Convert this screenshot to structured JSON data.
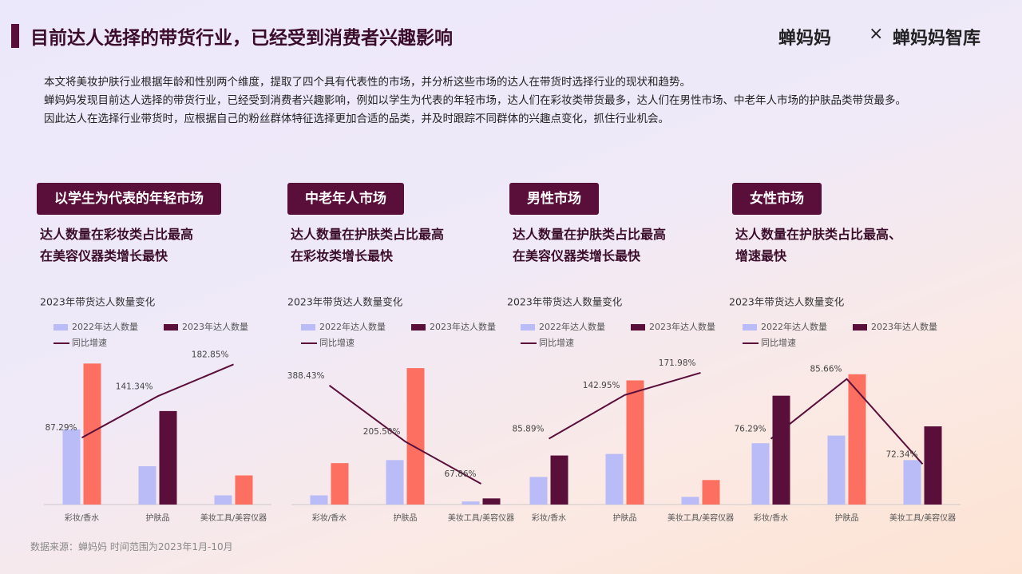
{
  "header": {
    "title": "目前达人选择的带货行业，已经受到消费者兴趣影响",
    "logo_left": "蝉妈妈",
    "logo_sep": "×",
    "logo_right": "蝉妈妈智库"
  },
  "intro": [
    "本文将美妆护肤行业根据年龄和性别两个维度，提取了四个具有代表性的市场，并分析这些市场的达人在带货时选择行业的现状和趋势。",
    "蝉妈妈发现目前达人选择的带货行业，已经受到消费者兴趣影响，例如以学生为代表的年轻市场，达人们在彩妆类带货最多，达人们在男性市场、中老年人市场的护肤品类带货最多。",
    "因此达人在选择行业带货时，应根据自己的粉丝群体特征选择更加合适的品类，并及时跟踪不同群体的兴趣点变化，抓住行业机会。"
  ],
  "panels": [
    {
      "heading": "以学生为代表的年轻市场",
      "points": [
        "达人数量在彩妆类占比最高",
        "在美容仪器类增长最快"
      ]
    },
    {
      "heading": "中老年人市场",
      "points": [
        "达人数量在护肤类占比最高",
        "在彩妆类增长最快"
      ]
    },
    {
      "heading": "男性市场",
      "points": [
        "达人数量在护肤类占比最高",
        "在美容仪器类增长最快"
      ]
    },
    {
      "heading": "女性市场",
      "points": [
        "达人数量在护肤类占比最高、",
        "增速最快"
      ]
    }
  ],
  "chart_data": [
    {
      "type": "bar",
      "title": "2023年带货达人数量变化",
      "categories": [
        "彩妆/香水",
        "护肤品",
        "美妆工具/美容仪器"
      ],
      "ylim": [
        0,
        100
      ],
      "y2lim": [
        0,
        200
      ],
      "series": [
        {
          "name": "2022年达人数量",
          "color": "#b9bcf6",
          "values": [
            49,
            25,
            6
          ]
        },
        {
          "name": "2023年达人数量",
          "color": "#5a0f3b",
          "point_colors": [
            "#fd6f61",
            "#5a0f3b",
            "#fd6f61"
          ],
          "values": [
            92,
            61,
            19
          ]
        },
        {
          "name": "同比增速",
          "type": "line",
          "axis": "y2",
          "color": "#5a0f3b",
          "values": [
            87.29,
            141.34,
            182.85
          ],
          "value_labels": [
            "87.29%",
            "141.34%",
            "182.85%"
          ]
        }
      ]
    },
    {
      "type": "bar",
      "title": "2023年带货达人数量变化",
      "categories": [
        "彩妆/香水",
        "护肤品",
        "美妆工具/美容仪器"
      ],
      "ylim": [
        0,
        100
      ],
      "y2lim": [
        0,
        500
      ],
      "series": [
        {
          "name": "2022年达人数量",
          "color": "#b9bcf6",
          "values": [
            6,
            29,
            2
          ]
        },
        {
          "name": "2023年达人数量",
          "color": "#5a0f3b",
          "point_colors": [
            "#fd6f61",
            "#fd6f61",
            "#5a0f3b"
          ],
          "values": [
            27,
            89,
            4
          ]
        },
        {
          "name": "同比增速",
          "type": "line",
          "axis": "y2",
          "color": "#5a0f3b",
          "values": [
            388.43,
            205.5,
            67.86
          ],
          "value_labels": [
            "388.43%",
            "205.50%",
            "67.86%"
          ]
        }
      ]
    },
    {
      "type": "bar",
      "title": "2023年带货达人数量变化",
      "categories": [
        "彩妆/香水",
        "护肤品",
        "美妆工具/美容仪器"
      ],
      "ylim": [
        0,
        100
      ],
      "y2lim": [
        0,
        200
      ],
      "series": [
        {
          "name": "2022年达人数量",
          "color": "#b9bcf6",
          "values": [
            18,
            33,
            5
          ]
        },
        {
          "name": "2023年达人数量",
          "color": "#5a0f3b",
          "point_colors": [
            "#5a0f3b",
            "#fd6f61",
            "#fd6f61"
          ],
          "values": [
            32,
            81,
            16
          ]
        },
        {
          "name": "同比增速",
          "type": "line",
          "axis": "y2",
          "color": "#5a0f3b",
          "values": [
            85.89,
            142.95,
            171.98
          ],
          "value_labels": [
            "85.89%",
            "142.95%",
            "171.98%"
          ]
        }
      ]
    },
    {
      "type": "bar",
      "title": "2023年带货达人数量变化",
      "categories": [
        "彩妆/香水",
        "护肤品",
        "美妆工具/美容仪器"
      ],
      "ylim": [
        0,
        100
      ],
      "y2lim": [
        66,
        90
      ],
      "series": [
        {
          "name": "2022年达人数量",
          "color": "#b9bcf6",
          "values": [
            40,
            45,
            29
          ]
        },
        {
          "name": "2023年达人数量",
          "color": "#5a0f3b",
          "point_colors": [
            "#5a0f3b",
            "#fd6f61",
            "#5a0f3b"
          ],
          "values": [
            71,
            85,
            51
          ]
        },
        {
          "name": "同比增速",
          "type": "line",
          "axis": "y2",
          "color": "#5a0f3b",
          "values": [
            76.29,
            85.66,
            72.34
          ],
          "value_labels": [
            "76.29%",
            "85.66%",
            "72.34%"
          ]
        }
      ]
    }
  ],
  "footer": "数据来源：蝉妈妈 时间范围为2023年1月-10月"
}
